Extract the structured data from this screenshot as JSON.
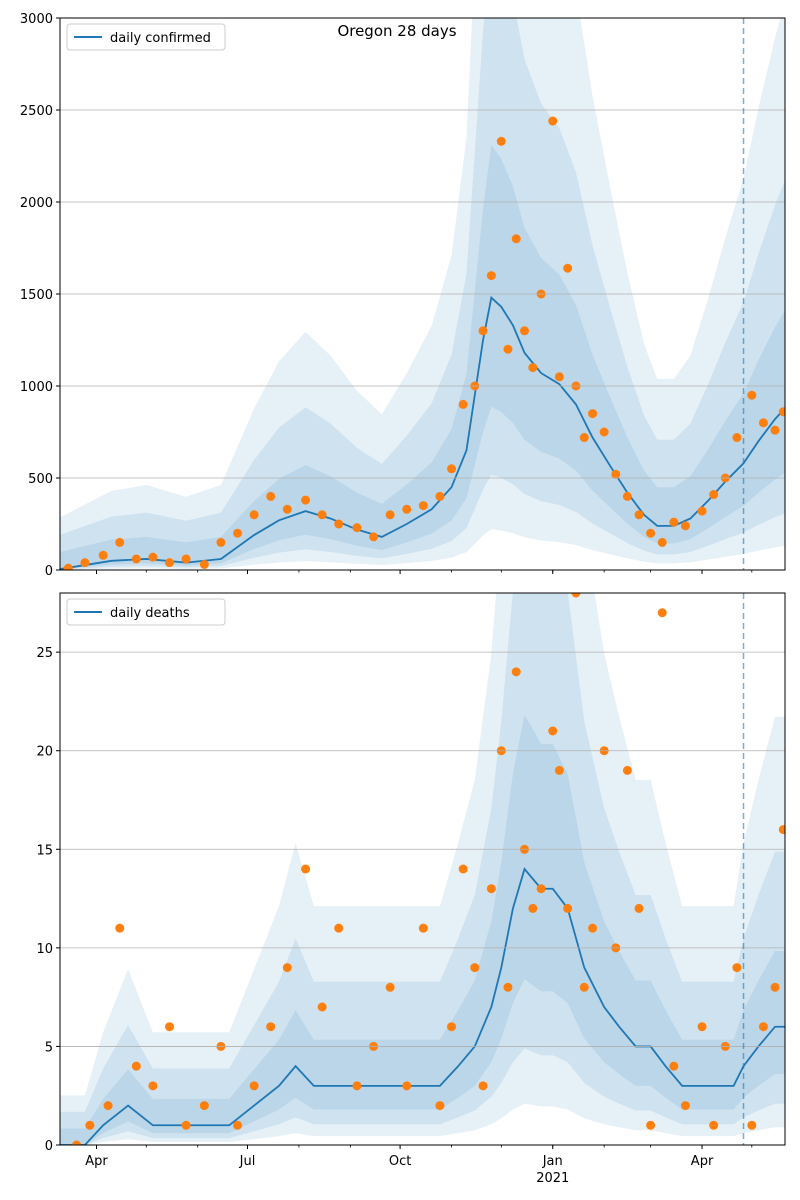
{
  "chart_data": [
    {
      "type": "line",
      "title": "Oregon 28 days",
      "xlabel": "",
      "ylabel": "",
      "ylim": [
        0,
        3000
      ],
      "xlim": [
        "2020-03-10",
        "2021-05-21"
      ],
      "grid": "y",
      "legend": {
        "position": "top-left",
        "entries": [
          "daily confirmed"
        ]
      },
      "x_tick_labels": [
        "Apr",
        "Jul",
        "Oct",
        "Jan",
        "Apr"
      ],
      "x_tick_dates": [
        "2020-04-01",
        "2020-07-01",
        "2020-10-01",
        "2021-01-01",
        "2021-04-01"
      ],
      "x_year_label": "2021",
      "y_ticks": [
        0,
        500,
        1000,
        1500,
        2000,
        2500,
        3000
      ],
      "forecast_start": "2021-04-26",
      "series": [
        {
          "name": "daily confirmed",
          "kind": "line",
          "x": [
            "2020-03-10",
            "2020-04-10",
            "2020-05-01",
            "2020-05-25",
            "2020-06-15",
            "2020-07-05",
            "2020-07-20",
            "2020-08-05",
            "2020-08-20",
            "2020-09-05",
            "2020-09-20",
            "2020-10-05",
            "2020-10-20",
            "2020-11-01",
            "2020-11-10",
            "2020-11-15",
            "2020-11-20",
            "2020-11-25",
            "2020-12-01",
            "2020-12-08",
            "2020-12-15",
            "2020-12-25",
            "2021-01-05",
            "2021-01-15",
            "2021-01-25",
            "2021-02-05",
            "2021-02-15",
            "2021-02-25",
            "2021-03-05",
            "2021-03-15",
            "2021-03-25",
            "2021-04-05",
            "2021-04-15",
            "2021-04-26",
            "2021-05-05",
            "2021-05-15",
            "2021-05-21"
          ],
          "y": [
            5,
            50,
            60,
            40,
            60,
            190,
            270,
            320,
            280,
            220,
            180,
            250,
            330,
            450,
            650,
            950,
            1250,
            1480,
            1430,
            1330,
            1180,
            1070,
            1010,
            900,
            720,
            560,
            420,
            300,
            240,
            240,
            280,
            380,
            480,
            580,
            700,
            820,
            880
          ]
        },
        {
          "name": "observed",
          "kind": "scatter",
          "x": [
            "2020-03-15",
            "2020-03-25",
            "2020-04-05",
            "2020-04-15",
            "2020-04-25",
            "2020-05-05",
            "2020-05-15",
            "2020-05-25",
            "2020-06-05",
            "2020-06-15",
            "2020-06-25",
            "2020-07-05",
            "2020-07-15",
            "2020-07-25",
            "2020-08-05",
            "2020-08-15",
            "2020-08-25",
            "2020-09-05",
            "2020-09-15",
            "2020-09-25",
            "2020-10-05",
            "2020-10-15",
            "2020-10-25",
            "2020-11-01",
            "2020-11-08",
            "2020-11-15",
            "2020-11-20",
            "2020-11-25",
            "2020-12-01",
            "2020-12-05",
            "2020-12-10",
            "2020-12-15",
            "2020-12-20",
            "2020-12-25",
            "2021-01-01",
            "2021-01-05",
            "2021-01-10",
            "2021-01-15",
            "2021-01-20",
            "2021-01-25",
            "2021-02-01",
            "2021-02-08",
            "2021-02-15",
            "2021-02-22",
            "2021-03-01",
            "2021-03-08",
            "2021-03-15",
            "2021-03-22",
            "2021-04-01",
            "2021-04-08",
            "2021-04-15",
            "2021-04-22",
            "2021-05-01",
            "2021-05-08",
            "2021-05-15",
            "2021-05-20"
          ],
          "y": [
            10,
            40,
            80,
            150,
            60,
            70,
            40,
            60,
            30,
            150,
            200,
            300,
            400,
            330,
            380,
            300,
            250,
            230,
            180,
            300,
            330,
            350,
            400,
            550,
            900,
            1000,
            1300,
            1600,
            2330,
            1200,
            1800,
            1300,
            1100,
            1500,
            2440,
            1050,
            1640,
            1000,
            720,
            850,
            750,
            520,
            400,
            300,
            200,
            150,
            260,
            240,
            320,
            410,
            500,
            720,
            950,
            800,
            760,
            860
          ]
        }
      ]
    },
    {
      "type": "line",
      "title": "",
      "xlabel": "",
      "ylabel": "",
      "ylim": [
        0,
        28
      ],
      "xlim": [
        "2020-03-10",
        "2021-05-21"
      ],
      "grid": "y",
      "legend": {
        "position": "top-left",
        "entries": [
          "daily deaths"
        ]
      },
      "x_tick_labels": [
        "Apr",
        "Jul",
        "Oct",
        "Jan",
        "Apr"
      ],
      "x_tick_dates": [
        "2020-04-01",
        "2020-07-01",
        "2020-10-01",
        "2021-01-01",
        "2021-04-01"
      ],
      "x_year_label": "2021",
      "y_ticks": [
        0,
        5,
        10,
        15,
        20,
        25
      ],
      "forecast_start": "2021-04-26",
      "series": [
        {
          "name": "daily deaths",
          "kind": "line",
          "x": [
            "2020-03-10",
            "2020-03-25",
            "2020-04-05",
            "2020-04-20",
            "2020-05-05",
            "2020-05-20",
            "2020-06-05",
            "2020-06-20",
            "2020-07-05",
            "2020-07-20",
            "2020-07-30",
            "2020-08-10",
            "2020-08-25",
            "2020-09-10",
            "2020-09-25",
            "2020-10-10",
            "2020-10-25",
            "2020-11-05",
            "2020-11-15",
            "2020-11-25",
            "2020-12-01",
            "2020-12-08",
            "2020-12-15",
            "2020-12-25",
            "2021-01-01",
            "2021-01-10",
            "2021-01-20",
            "2021-02-01",
            "2021-02-10",
            "2021-02-20",
            "2021-03-01",
            "2021-03-10",
            "2021-03-20",
            "2021-04-01",
            "2021-04-10",
            "2021-04-20",
            "2021-04-26",
            "2021-05-05",
            "2021-05-15",
            "2021-05-21"
          ],
          "y": [
            0,
            0,
            1,
            2,
            1,
            1,
            1,
            1,
            2,
            3,
            4,
            3,
            3,
            3,
            3,
            3,
            3,
            4,
            5,
            7,
            9,
            12,
            14,
            13,
            13,
            12,
            9,
            7,
            6,
            5,
            5,
            4,
            3,
            3,
            3,
            3,
            4,
            5,
            6,
            6
          ]
        },
        {
          "name": "observed",
          "kind": "scatter",
          "x": [
            "2020-03-20",
            "2020-03-28",
            "2020-04-08",
            "2020-04-15",
            "2020-04-25",
            "2020-05-05",
            "2020-05-15",
            "2020-05-25",
            "2020-06-05",
            "2020-06-15",
            "2020-06-25",
            "2020-07-05",
            "2020-07-15",
            "2020-07-25",
            "2020-08-05",
            "2020-08-15",
            "2020-08-25",
            "2020-09-05",
            "2020-09-15",
            "2020-09-25",
            "2020-10-05",
            "2020-10-15",
            "2020-10-25",
            "2020-11-01",
            "2020-11-08",
            "2020-11-15",
            "2020-11-20",
            "2020-11-25",
            "2020-12-01",
            "2020-12-05",
            "2020-12-10",
            "2020-12-15",
            "2020-12-20",
            "2020-12-25",
            "2021-01-01",
            "2021-01-05",
            "2021-01-10",
            "2021-01-15",
            "2021-01-20",
            "2021-01-25",
            "2021-02-01",
            "2021-02-08",
            "2021-02-15",
            "2021-02-22",
            "2021-03-01",
            "2021-03-08",
            "2021-03-15",
            "2021-03-22",
            "2021-04-01",
            "2021-04-08",
            "2021-04-15",
            "2021-04-22",
            "2021-05-01",
            "2021-05-08",
            "2021-05-15",
            "2021-05-20"
          ],
          "y": [
            0,
            1,
            2,
            11,
            4,
            3,
            6,
            1,
            2,
            5,
            1,
            3,
            6,
            9,
            14,
            7,
            11,
            3,
            5,
            8,
            3,
            11,
            2,
            6,
            14,
            9,
            3,
            13,
            20,
            8,
            24,
            15,
            12,
            13,
            21,
            19,
            12,
            28,
            8,
            11,
            20,
            10,
            19,
            12,
            1,
            27,
            4,
            2,
            6,
            1,
            5,
            9,
            1,
            6,
            8,
            16
          ]
        }
      ]
    }
  ]
}
